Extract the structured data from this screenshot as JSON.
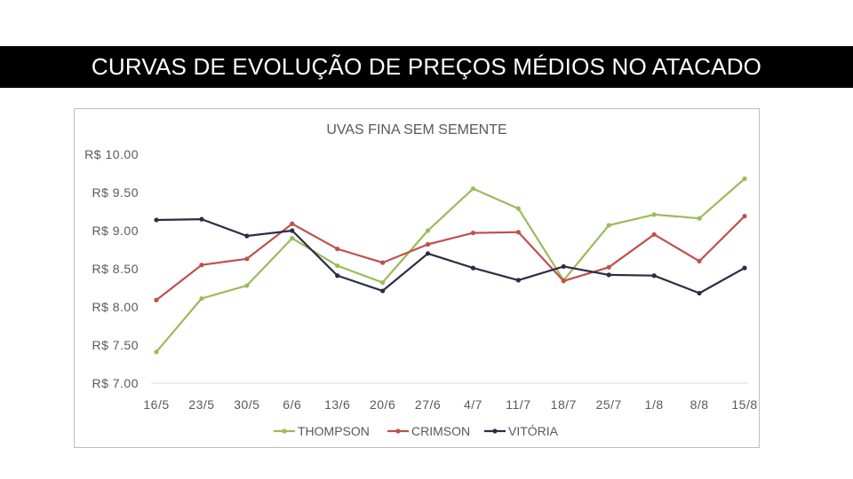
{
  "slide": {
    "title": "CURVAS DE EVOLUÇÃO DE PREÇOS MÉDIOS NO ATACADO"
  },
  "chart_data": {
    "type": "line",
    "title": "UVAS FINA SEM SEMENTE",
    "xlabel": "",
    "ylabel": "",
    "categories": [
      "16/5",
      "23/5",
      "30/5",
      "6/6",
      "13/6",
      "20/6",
      "27/6",
      "4/7",
      "11/7",
      "18/7",
      "25/7",
      "1/8",
      "8/8",
      "15/8"
    ],
    "y_tick_labels": [
      "R$ 10.00",
      "R$ 9.50",
      "R$ 9.00",
      "R$ 8.50",
      "R$ 8.00",
      "R$ 7.50",
      "R$ 7.00"
    ],
    "y_ticks": [
      10.0,
      9.5,
      9.0,
      8.5,
      8.0,
      7.5,
      7.0
    ],
    "ylim": [
      7.0,
      10.0
    ],
    "grid": false,
    "legend_position": "bottom",
    "series": [
      {
        "name": "THOMPSON",
        "color": "#9bbb59",
        "values": [
          7.41,
          8.11,
          8.28,
          8.9,
          8.54,
          8.32,
          9.0,
          9.55,
          9.29,
          8.35,
          9.07,
          9.21,
          9.16,
          9.68
        ]
      },
      {
        "name": "CRIMSON",
        "color": "#c0504d",
        "values": [
          8.09,
          8.55,
          8.63,
          9.09,
          8.76,
          8.58,
          8.82,
          8.97,
          8.98,
          8.34,
          8.52,
          8.95,
          8.6,
          9.19
        ]
      },
      {
        "name": "VITÓRIA",
        "color": "#2c2c46",
        "values": [
          9.14,
          9.15,
          8.93,
          9.0,
          8.41,
          8.21,
          8.7,
          8.51,
          8.35,
          8.53,
          8.42,
          8.41,
          8.18,
          8.51
        ]
      }
    ]
  }
}
